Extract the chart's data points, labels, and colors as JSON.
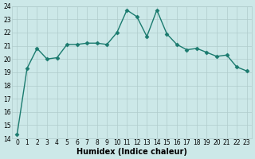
{
  "x": [
    0,
    1,
    2,
    3,
    4,
    5,
    6,
    7,
    8,
    9,
    10,
    11,
    12,
    13,
    14,
    15,
    16,
    17,
    18,
    19,
    20,
    21,
    22,
    23
  ],
  "y": [
    14.3,
    19.3,
    20.8,
    20.0,
    20.1,
    21.1,
    21.1,
    21.2,
    21.2,
    21.1,
    22.0,
    23.7,
    23.2,
    21.7,
    23.7,
    21.9,
    21.1,
    20.7,
    20.8,
    20.5,
    20.2,
    20.3,
    19.4,
    19.1
  ],
  "line_color": "#1a7a6e",
  "marker": "D",
  "markersize": 2.5,
  "linewidth": 1.0,
  "bg_color": "#cce8e8",
  "grid_color": "#b0cccc",
  "xlabel": "Humidex (Indice chaleur)",
  "tick_fontsize": 5.5,
  "xlabel_fontsize": 7.0,
  "ylim": [
    14,
    24
  ],
  "yticks": [
    14,
    15,
    16,
    17,
    18,
    19,
    20,
    21,
    22,
    23,
    24
  ],
  "xticks": [
    0,
    1,
    2,
    3,
    4,
    5,
    6,
    7,
    8,
    9,
    10,
    11,
    12,
    13,
    14,
    15,
    16,
    17,
    18,
    19,
    20,
    21,
    22,
    23
  ]
}
